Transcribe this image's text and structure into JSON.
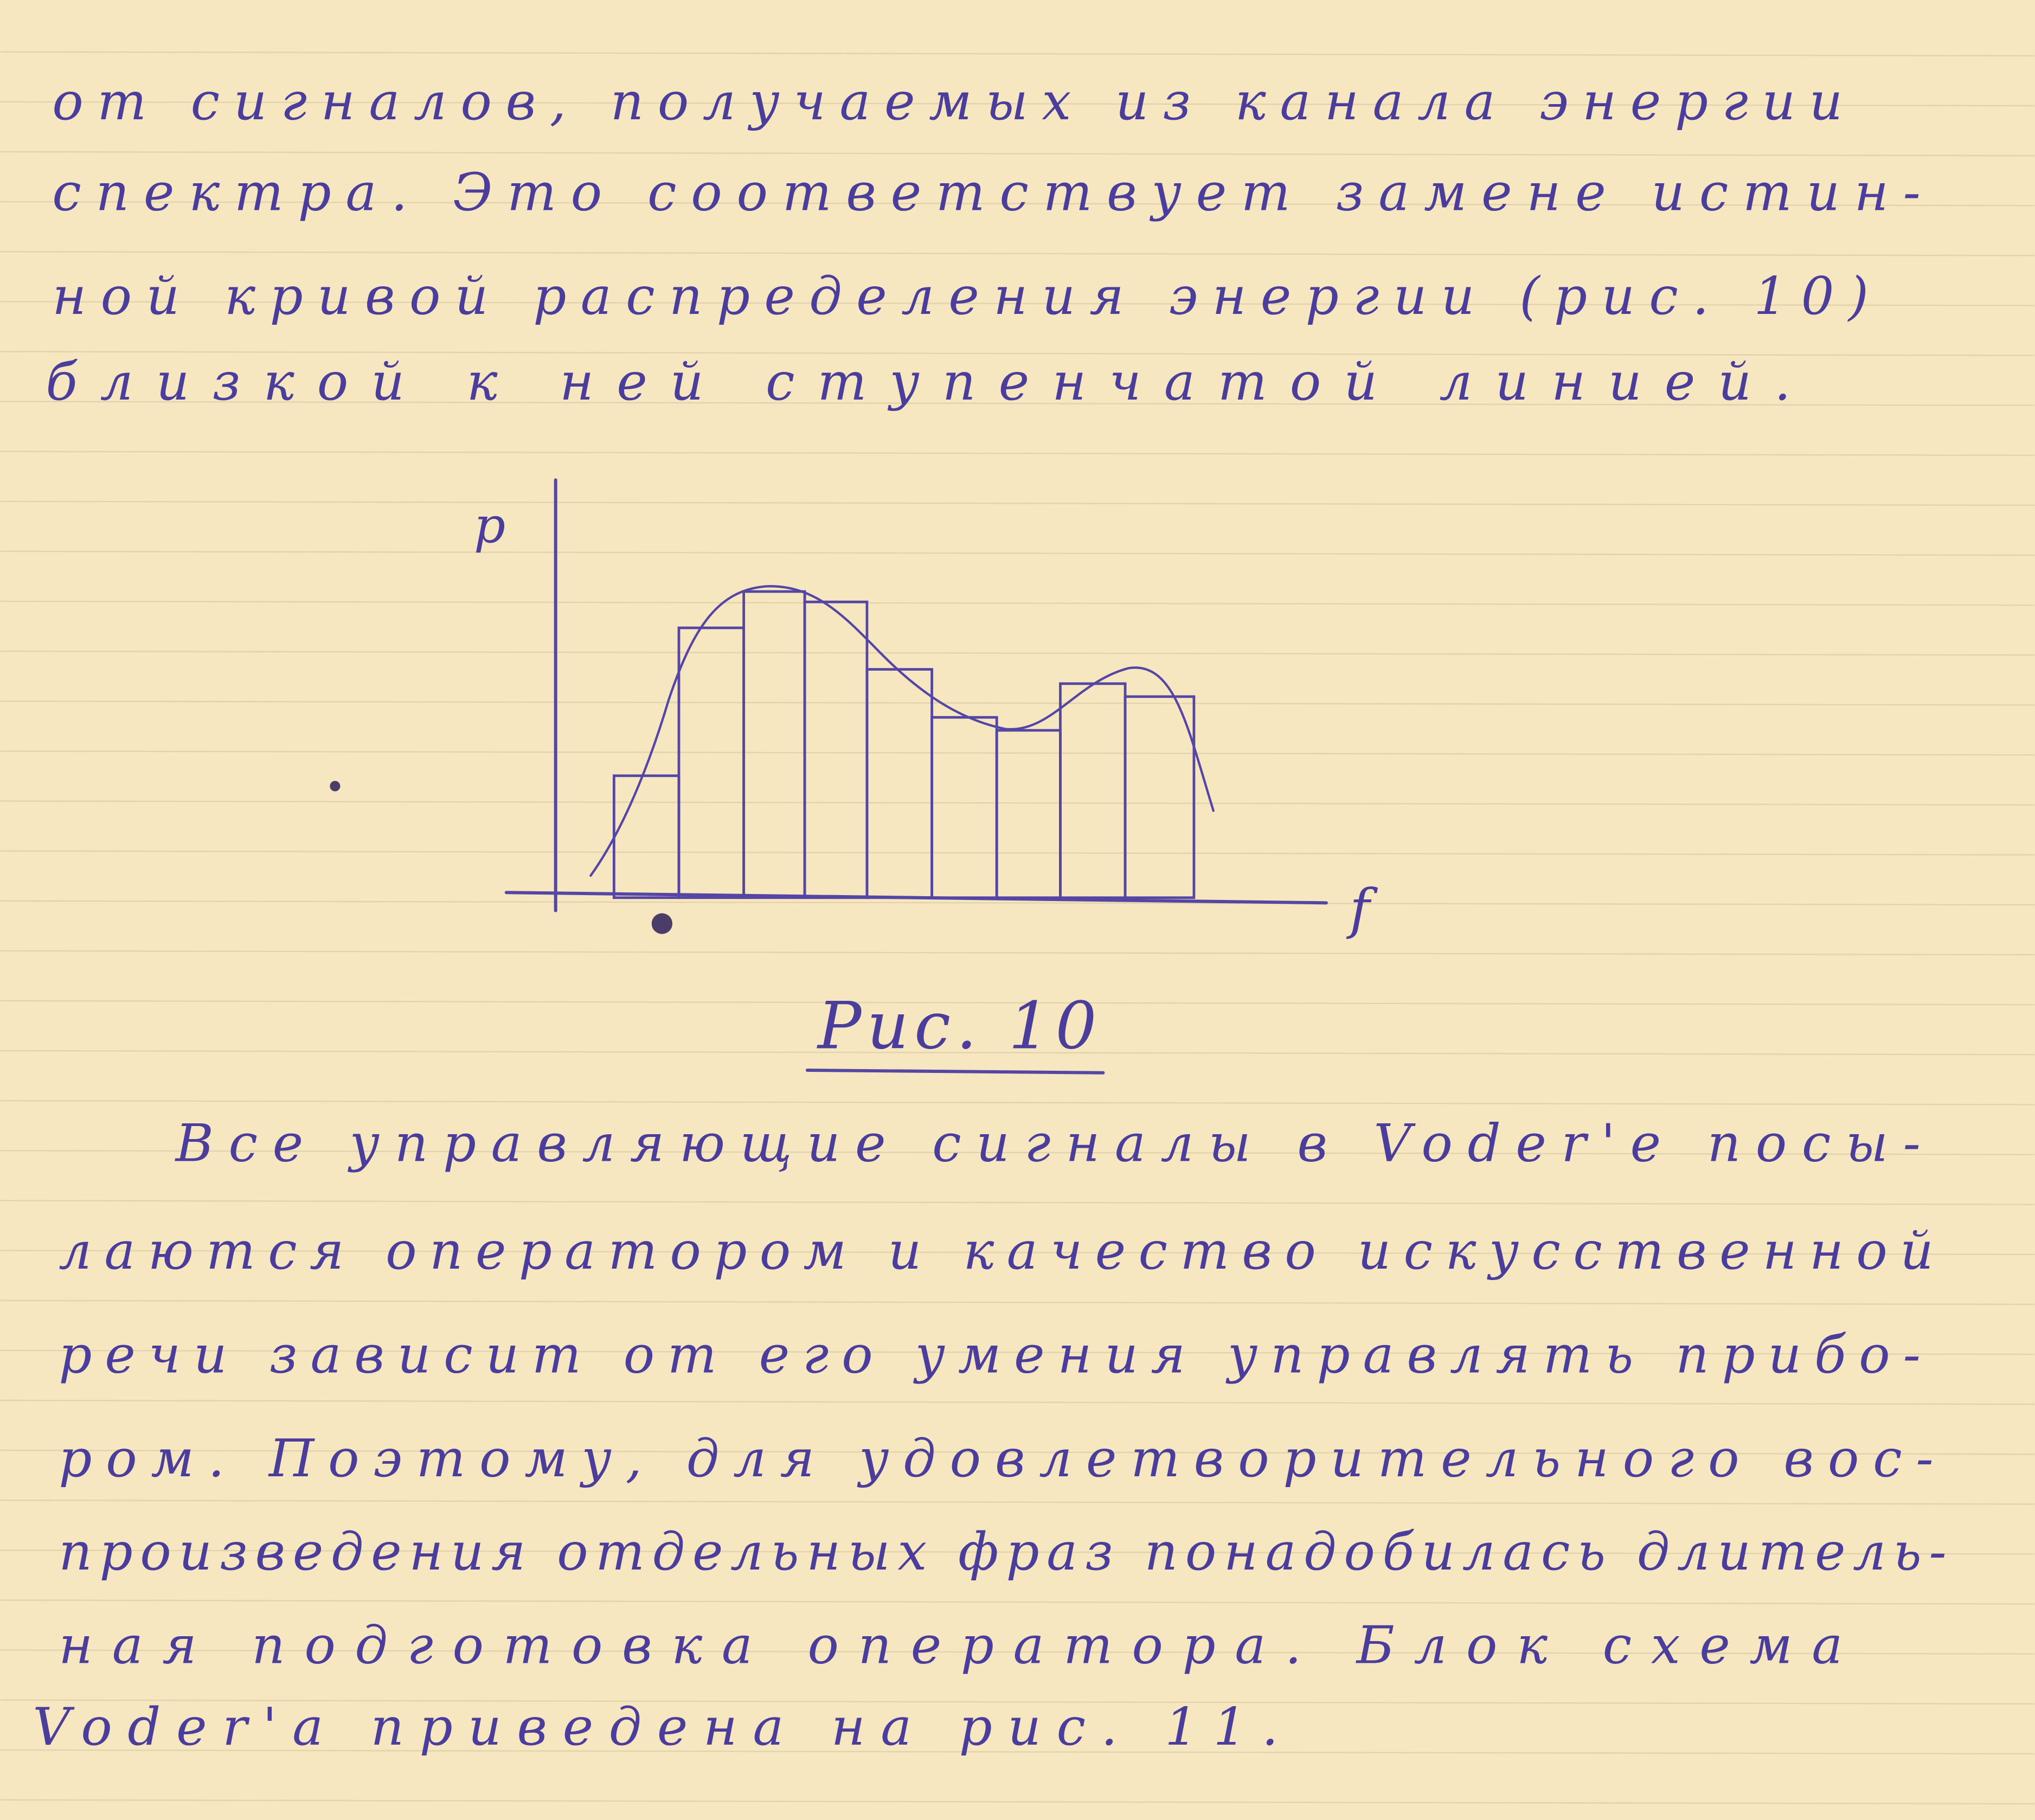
{
  "page": {
    "paper_color": "#f6e7c1",
    "ink_color": "#4b3d9c",
    "intro_lines": [
      "от сигналов, получаемых из канала энергии",
      "спектра. Это соответствует замене истин-",
      "ной кривой распределения энергии (рис. 10)",
      "близкой к ней ступенчатой линией."
    ],
    "figure": {
      "y_axis_label": "p",
      "x_axis_label": "f",
      "caption": "Рис. 10"
    },
    "body_lines": [
      "Все управляющие сигналы в Voder'е посы-",
      "лаются оператором и качество искусственной",
      "речи зависит от его умения управлять прибо-",
      "ром. Поэтому, для удовлетворительного вос-",
      "произведения отдельных фраз понадобилась длитель-",
      "ная подготовка оператора. Блок схема",
      "Voder'a приведена на рис. 11."
    ]
  }
}
